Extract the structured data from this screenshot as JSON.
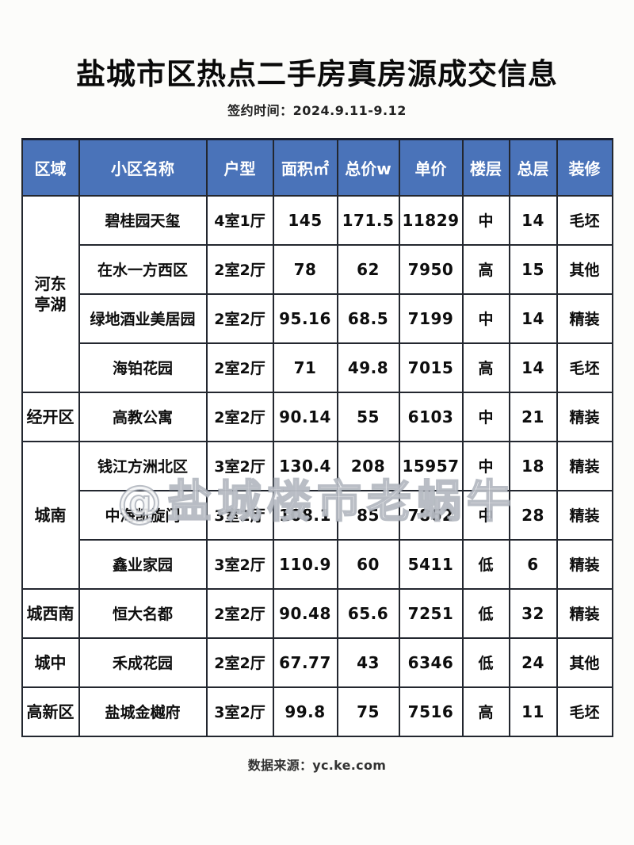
{
  "page": {
    "title": "盐城市区热点二手房真房源成交信息",
    "subtitle": "签约时间：2024.9.11-9.12",
    "watermark": "@盐城楼市老蜗牛",
    "footer": "数据来源：yc.ke.com"
  },
  "colors": {
    "header_bg": "#4a73b9",
    "header_text": "#ffffff",
    "border": "#23272f"
  },
  "table": {
    "columns": [
      "区域",
      "小区名称",
      "户型",
      "面积㎡",
      "总价w",
      "单价",
      "楼层",
      "总层",
      "装修"
    ],
    "groups": [
      {
        "region": "河东\n亭湖",
        "rows": [
          [
            "碧桂园天玺",
            "4室1厅",
            "145",
            "171.5",
            "11829",
            "中",
            "14",
            "毛坯"
          ],
          [
            "在水一方西区",
            "2室2厅",
            "78",
            "62",
            "7950",
            "高",
            "15",
            "其他"
          ],
          [
            "绿地酒业美居园",
            "2室2厅",
            "95.16",
            "68.5",
            "7199",
            "中",
            "14",
            "精装"
          ],
          [
            "海铂花园",
            "2室2厅",
            "71",
            "49.8",
            "7015",
            "高",
            "14",
            "毛坯"
          ]
        ]
      },
      {
        "region": "经开区",
        "rows": [
          [
            "高教公寓",
            "2室2厅",
            "90.14",
            "55",
            "6103",
            "中",
            "21",
            "精装"
          ]
        ]
      },
      {
        "region": "城南",
        "rows": [
          [
            "钱江方洲北区",
            "3室2厅",
            "130.4",
            "208",
            "15957",
            "中",
            "18",
            "精装"
          ],
          [
            "中海凯旋门",
            "3室2厅",
            "108.1",
            "85",
            "7862",
            "中",
            "28",
            "精装"
          ],
          [
            "鑫业家园",
            "3室2厅",
            "110.9",
            "60",
            "5411",
            "低",
            "6",
            "精装"
          ]
        ]
      },
      {
        "region": "城西南",
        "rows": [
          [
            "恒大名都",
            "2室2厅",
            "90.48",
            "65.6",
            "7251",
            "低",
            "32",
            "精装"
          ]
        ]
      },
      {
        "region": "城中",
        "rows": [
          [
            "禾成花园",
            "2室2厅",
            "67.77",
            "43",
            "6346",
            "低",
            "24",
            "其他"
          ]
        ]
      },
      {
        "region": "高新区",
        "rows": [
          [
            "盐城金樾府",
            "3室2厅",
            "99.8",
            "75",
            "7516",
            "高",
            "11",
            "毛坯"
          ]
        ]
      }
    ]
  }
}
